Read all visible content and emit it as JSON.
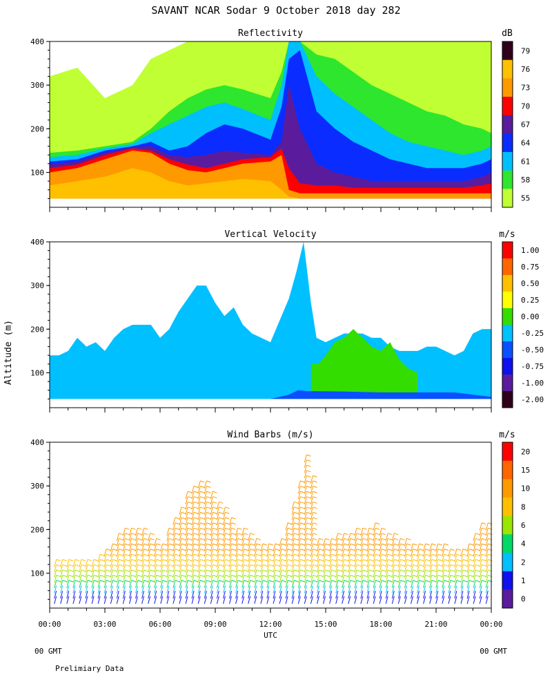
{
  "figure": {
    "title": "SAVANT  NCAR Sodar   9 October 2018  day 282",
    "yaxis_label": "Altitude (m)",
    "xaxis_label": "UTC",
    "footer_left": "00 GMT",
    "footer_right": "00 GMT",
    "note": "Prelimiary Data"
  },
  "chart_data": [
    {
      "type": "heatmap",
      "title": "Reflectivity",
      "units": "dB",
      "xlim": [
        0,
        24
      ],
      "ylim": [
        20,
        400
      ],
      "x_ticks": [
        0,
        3,
        6,
        9,
        12,
        15,
        18,
        21,
        24
      ],
      "y_ticks": [
        100,
        200,
        300,
        400
      ],
      "colorbar": {
        "labels": [
          "79",
          "76",
          "73",
          "70",
          "67",
          "64",
          "61",
          "58",
          "55"
        ],
        "colors": [
          "#30001a",
          "#ffc000",
          "#ff9900",
          "#ff0000",
          "#5a1c9c",
          "#0a2cff",
          "#00bfff",
          "#2ee62e",
          "#c0ff33"
        ]
      },
      "fields": [
        {
          "color": "#c0ff33",
          "x": [
            0,
            1.5,
            3,
            4.5,
            5.5,
            6.5,
            7.5,
            8.5,
            9.5,
            10.5,
            12,
            12.6,
            13,
            13.6,
            14.5,
            15.5,
            16.5,
            17.5,
            18.5,
            19.5,
            20.5,
            21.5,
            22.5,
            23.5,
            24
          ],
          "top": [
            320,
            340,
            270,
            300,
            360,
            380,
            400,
            400,
            400,
            400,
            400,
            400,
            400,
            400,
            400,
            400,
            400,
            400,
            400,
            400,
            400,
            400,
            400,
            400,
            400
          ]
        },
        {
          "color": "#2ee62e",
          "x": [
            0,
            1.5,
            3,
            4.5,
            5.5,
            6.5,
            7.5,
            8.5,
            9.5,
            10.5,
            12,
            12.6,
            13,
            13.6,
            14.5,
            15.5,
            16.5,
            17.5,
            18.5,
            19.5,
            20.5,
            21.5,
            22.5,
            23.5,
            24
          ],
          "top": [
            145,
            150,
            160,
            170,
            200,
            240,
            270,
            290,
            300,
            290,
            270,
            330,
            400,
            400,
            370,
            360,
            330,
            300,
            280,
            260,
            240,
            230,
            210,
            200,
            190
          ]
        },
        {
          "color": "#00bfff",
          "x": [
            0,
            1.5,
            3,
            4.5,
            5.5,
            6.5,
            7.5,
            8.5,
            9.5,
            10.5,
            12,
            12.6,
            13,
            13.6,
            14.5,
            15.5,
            16.5,
            17.5,
            18.5,
            19.5,
            20.5,
            21.5,
            22.5,
            23.5,
            24
          ],
          "top": [
            135,
            140,
            155,
            165,
            190,
            210,
            230,
            250,
            260,
            245,
            220,
            300,
            400,
            400,
            320,
            280,
            250,
            220,
            190,
            170,
            160,
            150,
            140,
            150,
            160
          ]
        },
        {
          "color": "#0a2cff",
          "x": [
            0,
            1.5,
            3,
            4.5,
            5.5,
            6.5,
            7.5,
            8.5,
            9.5,
            10.5,
            12,
            12.6,
            13,
            13.6,
            14.5,
            15.5,
            16.5,
            17.5,
            18.5,
            19.5,
            20.5,
            21.5,
            22.5,
            23.5,
            24
          ],
          "top": [
            125,
            130,
            150,
            160,
            170,
            150,
            160,
            190,
            210,
            200,
            175,
            250,
            360,
            380,
            240,
            200,
            170,
            150,
            130,
            120,
            110,
            110,
            110,
            120,
            130
          ]
        },
        {
          "color": "#5a1c9c",
          "x": [
            0,
            1.5,
            3,
            4.5,
            5.5,
            6.5,
            7.5,
            8.5,
            9.5,
            10.5,
            12,
            12.6,
            13,
            13.6,
            14.5,
            15.5,
            16.5,
            17.5,
            18.5,
            19.5,
            20.5,
            21.5,
            22.5,
            23.5,
            24
          ],
          "top": [
            118,
            125,
            145,
            158,
            160,
            140,
            135,
            140,
            150,
            145,
            140,
            170,
            300,
            200,
            120,
            100,
            90,
            80,
            80,
            80,
            80,
            80,
            80,
            90,
            100
          ]
        },
        {
          "color": "#ff0000",
          "x": [
            0,
            1.5,
            3,
            4.5,
            5.5,
            6.5,
            7.5,
            8.5,
            9.5,
            10.5,
            12,
            12.6,
            13,
            13.6,
            14.5,
            15.5,
            16.5,
            17.5,
            18.5,
            19.5,
            20.5,
            21.5,
            22.5,
            23.5,
            24
          ],
          "top": [
            110,
            118,
            140,
            155,
            150,
            130,
            118,
            110,
            120,
            130,
            135,
            155,
            110,
            75,
            70,
            70,
            65,
            65,
            65,
            65,
            65,
            65,
            65,
            70,
            75
          ]
        },
        {
          "color": "#ff9900",
          "x": [
            0,
            1.5,
            3,
            4.5,
            5.5,
            6.5,
            7.5,
            8.5,
            9.5,
            10.5,
            12,
            12.6,
            13,
            13.6,
            14.5,
            15.5,
            16.5,
            17.5,
            18.5,
            19.5,
            20.5,
            21.5,
            22.5,
            23.5,
            24
          ],
          "top": [
            100,
            110,
            130,
            150,
            145,
            120,
            105,
            100,
            110,
            120,
            125,
            140,
            60,
            52,
            52,
            52,
            52,
            52,
            52,
            52,
            52,
            52,
            52,
            52,
            52
          ]
        },
        {
          "color": "#ffc000",
          "x": [
            0,
            1.5,
            3,
            4.5,
            5.5,
            6.5,
            7.5,
            8.5,
            9.5,
            10.5,
            12,
            12.6,
            13,
            13.6,
            14.5,
            15.5,
            16.5,
            17.5,
            18.5,
            19.5,
            20.5,
            21.5,
            22.5,
            23.5,
            24
          ],
          "top": [
            70,
            80,
            90,
            110,
            100,
            80,
            70,
            75,
            80,
            85,
            80,
            60,
            45,
            40,
            40,
            40,
            40,
            40,
            40,
            40,
            40,
            40,
            40,
            40,
            40
          ]
        }
      ]
    },
    {
      "type": "heatmap",
      "title": "Vertical Velocity",
      "units": "m/s",
      "xlim": [
        0,
        24
      ],
      "ylim": [
        20,
        400
      ],
      "x_ticks": [
        0,
        3,
        6,
        9,
        12,
        15,
        18,
        21,
        24
      ],
      "y_ticks": [
        100,
        200,
        300,
        400
      ],
      "colorbar": {
        "labels": [
          "1.00",
          "0.75",
          "0.50",
          "0.25",
          "0.00",
          "-0.25",
          "-0.50",
          "-0.75",
          "-1.00",
          "-2.00"
        ],
        "colors": [
          "#ff0000",
          "#ff6600",
          "#ffc000",
          "#ffff00",
          "#33dd00",
          "#00c0ff",
          "#0a50ff",
          "#1010ee",
          "#5a1c9c",
          "#30001a"
        ]
      },
      "fields": [
        {
          "color": "#00c0ff",
          "x": [
            0,
            0.5,
            1,
            1.5,
            2,
            2.5,
            3,
            3.5,
            4,
            4.5,
            5,
            5.5,
            6,
            6.5,
            7,
            7.5,
            8,
            8.5,
            9,
            9.5,
            10,
            10.5,
            11,
            11.5,
            12,
            12.5,
            13,
            13.4,
            13.8,
            14.2,
            14.5,
            15,
            15.5,
            16,
            16.5,
            17,
            17.5,
            18,
            18.5,
            19,
            19.5,
            20,
            20.5,
            21,
            21.5,
            22,
            22.5,
            23,
            23.5,
            24
          ],
          "top": [
            140,
            140,
            150,
            180,
            160,
            170,
            150,
            180,
            200,
            210,
            210,
            210,
            180,
            200,
            240,
            270,
            300,
            300,
            260,
            230,
            250,
            210,
            190,
            180,
            170,
            220,
            270,
            330,
            400,
            260,
            180,
            170,
            180,
            190,
            190,
            190,
            180,
            180,
            160,
            150,
            150,
            150,
            160,
            160,
            150,
            140,
            150,
            190,
            200,
            200
          ]
        },
        {
          "color": "#33dd00",
          "x": [
            14.2,
            14.6,
            15,
            15.5,
            16,
            16.5,
            17,
            17.5,
            18,
            18.5,
            19,
            19.5,
            20
          ],
          "top": [
            120,
            120,
            140,
            170,
            180,
            200,
            180,
            160,
            150,
            170,
            130,
            110,
            100
          ]
        },
        {
          "color": "#0a50ff",
          "x": [
            0,
            2,
            4,
            6,
            8,
            10,
            12,
            13,
            13.5,
            14,
            16,
            18,
            20,
            22,
            23,
            24
          ],
          "top": [
            40,
            40,
            40,
            40,
            40,
            40,
            40,
            50,
            60,
            58,
            57,
            55,
            55,
            55,
            50,
            45
          ]
        }
      ]
    },
    {
      "type": "scatter",
      "title": "Wind Barbs (m/s)",
      "units": "m/s",
      "xlim": [
        0,
        24
      ],
      "ylim": [
        20,
        400
      ],
      "x_ticks": [
        0,
        3,
        6,
        9,
        12,
        15,
        18,
        21,
        24
      ],
      "x_tick_labels": [
        "00:00",
        "03:00",
        "06:00",
        "09:00",
        "12:00",
        "15:00",
        "18:00",
        "21:00",
        "00:00"
      ],
      "y_ticks": [
        100,
        200,
        300,
        400
      ],
      "colorbar": {
        "labels": [
          "20",
          "15",
          "10",
          "8",
          "6",
          "4",
          "2",
          "1",
          "0"
        ],
        "colors": [
          "#ff0000",
          "#ff6600",
          "#ff9900",
          "#ffc000",
          "#9be600",
          "#00d966",
          "#00c0ff",
          "#1010ee",
          "#5a1c9c"
        ]
      },
      "envelope": {
        "x": [
          0,
          0.5,
          1,
          1.5,
          2,
          2.5,
          3,
          3.5,
          4,
          4.5,
          5,
          5.5,
          6,
          6.5,
          7,
          7.5,
          8,
          8.5,
          9,
          9.5,
          10,
          10.5,
          11,
          11.5,
          12,
          12.5,
          13,
          13.5,
          14,
          14.5,
          15,
          15.5,
          16,
          16.5,
          17,
          17.5,
          18,
          18.5,
          19,
          19.5,
          20,
          20.5,
          21,
          21.5,
          22,
          22.5,
          23,
          23.5,
          24
        ],
        "top": [
          130,
          120,
          120,
          115,
          120,
          130,
          140,
          170,
          190,
          200,
          190,
          170,
          150,
          200,
          240,
          280,
          300,
          300,
          260,
          230,
          200,
          190,
          170,
          160,
          150,
          170,
          220,
          300,
          390,
          170,
          170,
          175,
          180,
          190,
          195,
          200,
          190,
          180,
          170,
          160,
          160,
          155,
          150,
          150,
          145,
          150,
          180,
          210,
          200
        ]
      },
      "speed_bands": [
        {
          "max_alt": 45,
          "speed": 1
        },
        {
          "max_alt": 60,
          "speed": 2
        },
        {
          "max_alt": 75,
          "speed": 4
        },
        {
          "max_alt": 95,
          "speed": 6
        },
        {
          "max_alt": 130,
          "speed": 8
        },
        {
          "max_alt": 400,
          "speed": 10
        }
      ]
    }
  ]
}
